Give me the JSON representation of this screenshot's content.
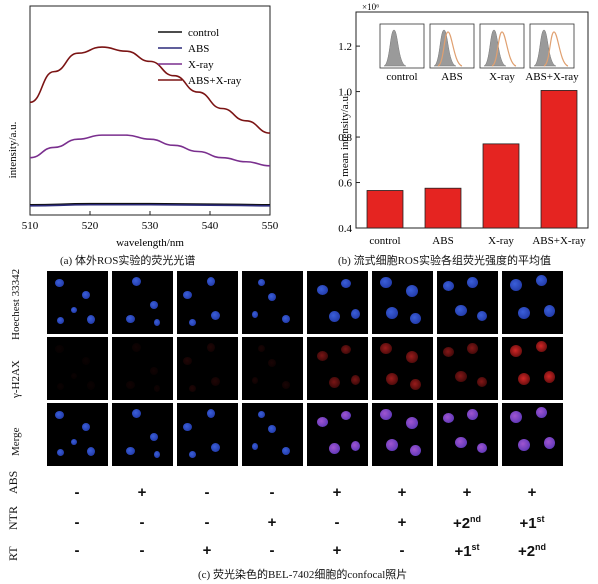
{
  "panel_a": {
    "caption": "(a)  体外ROS实验的荧光光谱",
    "chart_data": {
      "type": "line",
      "xlabel": "wavelength/nm",
      "ylabel": "intensity/a.u.",
      "xlim": [
        510,
        550
      ],
      "xticks": [
        "510",
        "520",
        "530",
        "540",
        "550"
      ],
      "legend_position": "top-right",
      "series": [
        {
          "name": "control",
          "color": "#111111",
          "x": [
            510,
            520,
            530,
            540,
            550
          ],
          "y": [
            0.05,
            0.055,
            0.055,
            0.053,
            0.05
          ]
        },
        {
          "name": "ABS",
          "color": "#2b2a7a",
          "x": [
            510,
            520,
            530,
            540,
            550
          ],
          "y": [
            0.045,
            0.05,
            0.05,
            0.048,
            0.045
          ]
        },
        {
          "name": "X-ray",
          "color": "#7a2f8e",
          "x": [
            510,
            514,
            518,
            522,
            526,
            530,
            534,
            538,
            542,
            546,
            550
          ],
          "y": [
            0.28,
            0.33,
            0.37,
            0.39,
            0.39,
            0.37,
            0.34,
            0.31,
            0.28,
            0.26,
            0.24
          ]
        },
        {
          "name": "ABS+X-ray",
          "color": "#7b1414",
          "x": [
            510,
            514,
            518,
            522,
            526,
            530,
            534,
            538,
            542,
            546,
            550
          ],
          "y": [
            0.55,
            0.7,
            0.79,
            0.82,
            0.8,
            0.75,
            0.68,
            0.6,
            0.52,
            0.46,
            0.4
          ]
        }
      ]
    }
  },
  "panel_b": {
    "caption": "(b) 流式细胞ROS实验各组荧光强度的平均值",
    "chart_data": {
      "type": "bar",
      "ylabel": "mean intensity/a.u.",
      "y_multiplier": "×10⁶",
      "categories": [
        "control",
        "ABS",
        "X-ray",
        "ABS+X-ray"
      ],
      "values": [
        0.565,
        0.575,
        0.77,
        1.005
      ],
      "ylim": [
        0.4,
        1.35
      ],
      "yticks": [
        "0.4",
        "0.6",
        "0.8",
        "1.0",
        "1.2"
      ],
      "bar_color": "#e52421",
      "inset_labels": [
        "control",
        "ABS",
        "X-ray",
        "ABS+X-ray"
      ]
    }
  },
  "panel_c": {
    "caption": "(c) 荧光染色的BEL-7402细胞的confocal照片",
    "row_labels": [
      "Hoechest 33342",
      "γ-H2AX",
      "Merge"
    ],
    "treatments": [
      {
        "label": "ABS",
        "marks": [
          "-",
          "+",
          "-",
          "-",
          "+",
          "+",
          "+",
          "+"
        ]
      },
      {
        "label": "NTR",
        "marks": [
          "-",
          "-",
          "-",
          "+",
          "-",
          "+",
          "+2nd",
          "+1st"
        ]
      },
      {
        "label": "RT",
        "marks": [
          "-",
          "-",
          "+",
          "-",
          "+",
          "-",
          "+1st",
          "+2nd"
        ]
      }
    ]
  }
}
